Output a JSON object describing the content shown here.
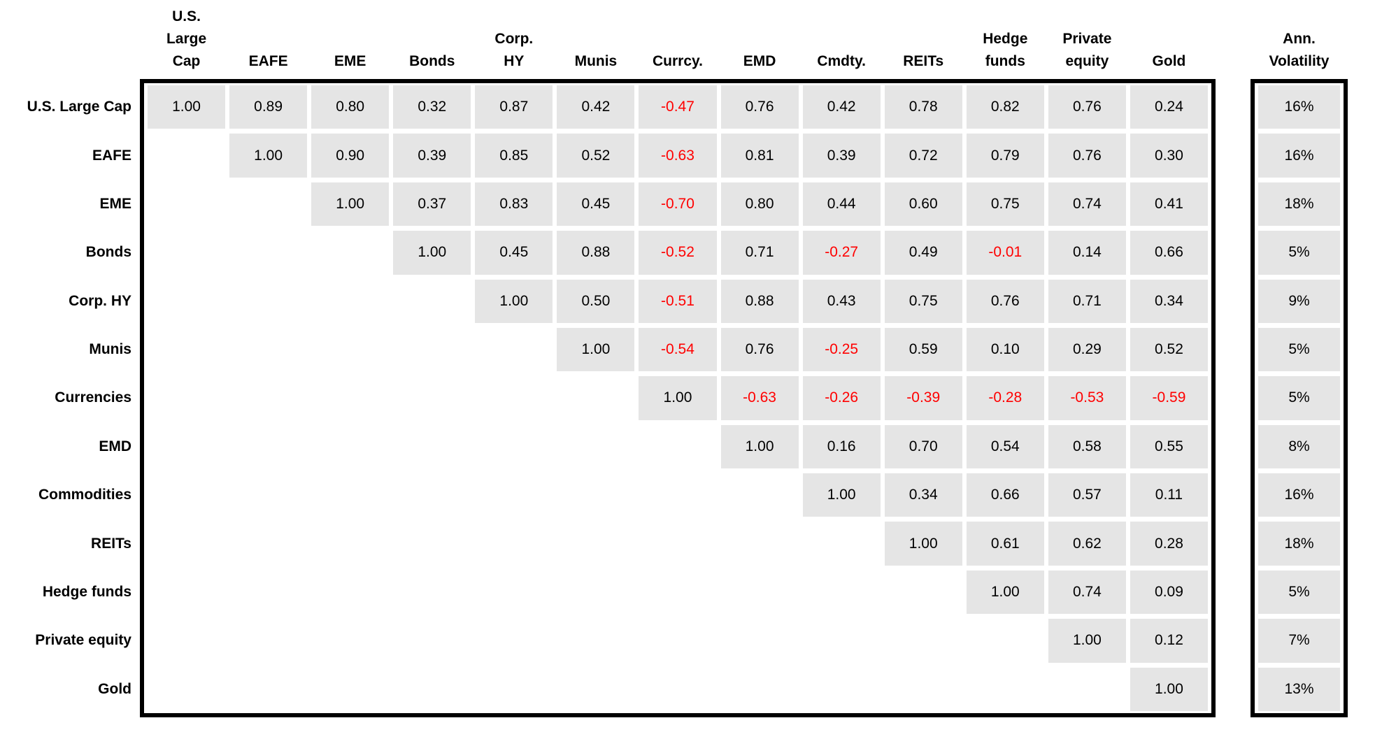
{
  "colors": {
    "cell_bg": "#e5e5e5",
    "negative_text": "#ff0000",
    "positive_text": "#000000",
    "box_border": "#000000"
  },
  "matrix": {
    "column_headers": [
      "U.S.\nLarge\nCap",
      "EAFE",
      "EME",
      "Bonds",
      "Corp.\nHY",
      "Munis",
      "Currcy.",
      "EMD",
      "Cmdty.",
      "REITs",
      "Hedge\nfunds",
      "Private\nequity",
      "Gold"
    ],
    "row_labels": [
      "U.S. Large Cap",
      "EAFE",
      "EME",
      "Bonds",
      "Corp. HY",
      "Munis",
      "Currencies",
      "EMD",
      "Commodities",
      "REITs",
      "Hedge funds",
      "Private equity",
      "Gold"
    ],
    "rows": [
      [
        "1.00",
        "0.89",
        "0.80",
        "0.32",
        "0.87",
        "0.42",
        "-0.47",
        "0.76",
        "0.42",
        "0.78",
        "0.82",
        "0.76",
        "0.24"
      ],
      [
        null,
        "1.00",
        "0.90",
        "0.39",
        "0.85",
        "0.52",
        "-0.63",
        "0.81",
        "0.39",
        "0.72",
        "0.79",
        "0.76",
        "0.30"
      ],
      [
        null,
        null,
        "1.00",
        "0.37",
        "0.83",
        "0.45",
        "-0.70",
        "0.80",
        "0.44",
        "0.60",
        "0.75",
        "0.74",
        "0.41"
      ],
      [
        null,
        null,
        null,
        "1.00",
        "0.45",
        "0.88",
        "-0.52",
        "0.71",
        "-0.27",
        "0.49",
        "-0.01",
        "0.14",
        "0.66"
      ],
      [
        null,
        null,
        null,
        null,
        "1.00",
        "0.50",
        "-0.51",
        "0.88",
        "0.43",
        "0.75",
        "0.76",
        "0.71",
        "0.34"
      ],
      [
        null,
        null,
        null,
        null,
        null,
        "1.00",
        "-0.54",
        "0.76",
        "-0.25",
        "0.59",
        "0.10",
        "0.29",
        "0.52"
      ],
      [
        null,
        null,
        null,
        null,
        null,
        null,
        "1.00",
        "-0.63",
        "-0.26",
        "-0.39",
        "-0.28",
        "-0.53",
        "-0.59"
      ],
      [
        null,
        null,
        null,
        null,
        null,
        null,
        null,
        "1.00",
        "0.16",
        "0.70",
        "0.54",
        "0.58",
        "0.55"
      ],
      [
        null,
        null,
        null,
        null,
        null,
        null,
        null,
        null,
        "1.00",
        "0.34",
        "0.66",
        "0.57",
        "0.11"
      ],
      [
        null,
        null,
        null,
        null,
        null,
        null,
        null,
        null,
        null,
        "1.00",
        "0.61",
        "0.62",
        "0.28"
      ],
      [
        null,
        null,
        null,
        null,
        null,
        null,
        null,
        null,
        null,
        null,
        "1.00",
        "0.74",
        "0.09"
      ],
      [
        null,
        null,
        null,
        null,
        null,
        null,
        null,
        null,
        null,
        null,
        null,
        "1.00",
        "0.12"
      ],
      [
        null,
        null,
        null,
        null,
        null,
        null,
        null,
        null,
        null,
        null,
        null,
        null,
        "1.00"
      ]
    ]
  },
  "volatility": {
    "header": "Ann.\nVolatility",
    "values": [
      "16%",
      "16%",
      "18%",
      "5%",
      "9%",
      "5%",
      "5%",
      "8%",
      "16%",
      "18%",
      "5%",
      "7%",
      "13%"
    ]
  },
  "chart_data": {
    "type": "heatmap",
    "title": "Correlation matrix (upper triangle) with annualized volatility",
    "categories": [
      "U.S. Large Cap",
      "EAFE",
      "EME",
      "Bonds",
      "Corp. HY",
      "Munis",
      "Currencies",
      "EMD",
      "Commodities",
      "REITs",
      "Hedge funds",
      "Private equity",
      "Gold"
    ],
    "matrix": [
      [
        1.0,
        0.89,
        0.8,
        0.32,
        0.87,
        0.42,
        -0.47,
        0.76,
        0.42,
        0.78,
        0.82,
        0.76,
        0.24
      ],
      [
        null,
        1.0,
        0.9,
        0.39,
        0.85,
        0.52,
        -0.63,
        0.81,
        0.39,
        0.72,
        0.79,
        0.76,
        0.3
      ],
      [
        null,
        null,
        1.0,
        0.37,
        0.83,
        0.45,
        -0.7,
        0.8,
        0.44,
        0.6,
        0.75,
        0.74,
        0.41
      ],
      [
        null,
        null,
        null,
        1.0,
        0.45,
        0.88,
        -0.52,
        0.71,
        -0.27,
        0.49,
        -0.01,
        0.14,
        0.66
      ],
      [
        null,
        null,
        null,
        null,
        1.0,
        0.5,
        -0.51,
        0.88,
        0.43,
        0.75,
        0.76,
        0.71,
        0.34
      ],
      [
        null,
        null,
        null,
        null,
        null,
        1.0,
        -0.54,
        0.76,
        -0.25,
        0.59,
        0.1,
        0.29,
        0.52
      ],
      [
        null,
        null,
        null,
        null,
        null,
        null,
        1.0,
        -0.63,
        -0.26,
        -0.39,
        -0.28,
        -0.53,
        -0.59
      ],
      [
        null,
        null,
        null,
        null,
        null,
        null,
        null,
        1.0,
        0.16,
        0.7,
        0.54,
        0.58,
        0.55
      ],
      [
        null,
        null,
        null,
        null,
        null,
        null,
        null,
        null,
        1.0,
        0.34,
        0.66,
        0.57,
        0.11
      ],
      [
        null,
        null,
        null,
        null,
        null,
        null,
        null,
        null,
        null,
        1.0,
        0.61,
        0.62,
        0.28
      ],
      [
        null,
        null,
        null,
        null,
        null,
        null,
        null,
        null,
        null,
        null,
        1.0,
        0.74,
        0.09
      ],
      [
        null,
        null,
        null,
        null,
        null,
        null,
        null,
        null,
        null,
        null,
        null,
        1.0,
        0.12
      ],
      [
        null,
        null,
        null,
        null,
        null,
        null,
        null,
        null,
        null,
        null,
        null,
        null,
        1.0
      ]
    ],
    "annualized_volatility_pct": [
      16,
      16,
      18,
      5,
      9,
      5,
      5,
      8,
      16,
      18,
      5,
      7,
      13
    ],
    "legend_position": "none",
    "grid": false,
    "value_range": [
      -1,
      1
    ],
    "negative_values_colored": "#ff0000"
  }
}
